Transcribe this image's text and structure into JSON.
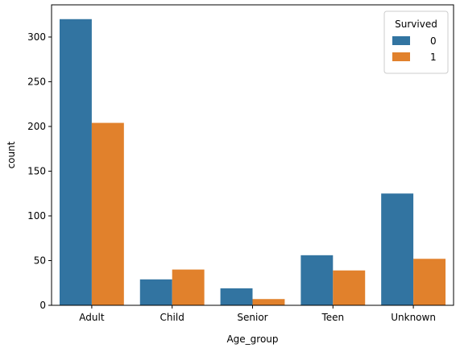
{
  "chart_data": {
    "type": "bar",
    "xlabel": "Age_group",
    "ylabel": "count",
    "categories": [
      "Adult",
      "Child",
      "Senior",
      "Teen",
      "Unknown"
    ],
    "series": [
      {
        "name": "0",
        "values": [
          320,
          29,
          19,
          56,
          125
        ],
        "color": "#3274a1"
      },
      {
        "name": "1",
        "values": [
          204,
          40,
          7,
          39,
          52
        ],
        "color": "#e1812c"
      }
    ],
    "ylim": [
      0,
      336
    ],
    "yticks": [
      0,
      50,
      100,
      150,
      200,
      250,
      300
    ],
    "legend": {
      "title": "Survived",
      "placement": "top-right"
    },
    "grid": false
  }
}
